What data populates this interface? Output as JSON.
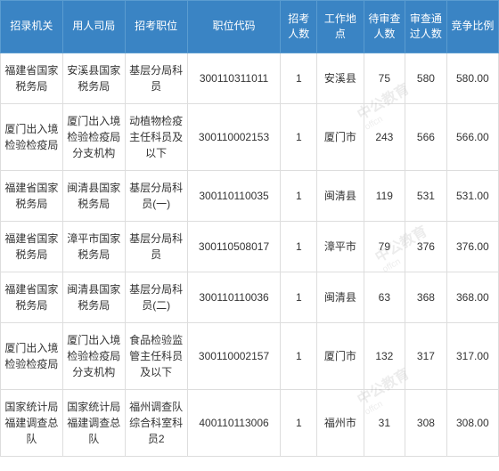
{
  "table": {
    "header_bg": "#3a84c4",
    "header_color": "#ffffff",
    "border_color": "#dddddd",
    "columns": [
      {
        "label": "招录机关",
        "width": "12%"
      },
      {
        "label": "用人司局",
        "width": "12%"
      },
      {
        "label": "招考职位",
        "width": "12%"
      },
      {
        "label": "职位代码",
        "width": "18%"
      },
      {
        "label": "招考人数",
        "width": "7%"
      },
      {
        "label": "工作地点",
        "width": "9%"
      },
      {
        "label": "待审查人数",
        "width": "8%"
      },
      {
        "label": "审查通过人数",
        "width": "8%"
      },
      {
        "label": "竞争比例",
        "width": "10%"
      }
    ],
    "rows": [
      {
        "c0": "福建省国家税务局",
        "c1": "安溪县国家税务局",
        "c2": "基层分局科员",
        "c3": "300110311011",
        "c4": "1",
        "c5": "安溪县",
        "c6": "75",
        "c7": "580",
        "c8": "580.00"
      },
      {
        "c0": "厦门出入境检验检疫局",
        "c1": "厦门出入境检验检疫局分支机构",
        "c2": "动植物检疫主任科员及以下",
        "c3": "300110002153",
        "c4": "1",
        "c5": "厦门市",
        "c6": "243",
        "c7": "566",
        "c8": "566.00"
      },
      {
        "c0": "福建省国家税务局",
        "c1": "闽清县国家税务局",
        "c2": "基层分局科员(一)",
        "c3": "300110110035",
        "c4": "1",
        "c5": "闽清县",
        "c6": "119",
        "c7": "531",
        "c8": "531.00"
      },
      {
        "c0": "福建省国家税务局",
        "c1": "漳平市国家税务局",
        "c2": "基层分局科员",
        "c3": "300110508017",
        "c4": "1",
        "c5": "漳平市",
        "c6": "79",
        "c7": "376",
        "c8": "376.00"
      },
      {
        "c0": "福建省国家税务局",
        "c1": "闽清县国家税务局",
        "c2": "基层分局科员(二)",
        "c3": "300110110036",
        "c4": "1",
        "c5": "闽清县",
        "c6": "63",
        "c7": "368",
        "c8": "368.00"
      },
      {
        "c0": "厦门出入境检验检疫局",
        "c1": "厦门出入境检验检疫局分支机构",
        "c2": "食品检验监管主任科员及以下",
        "c3": "300110002157",
        "c4": "1",
        "c5": "厦门市",
        "c6": "132",
        "c7": "317",
        "c8": "317.00"
      },
      {
        "c0": "国家统计局福建调查总队",
        "c1": "国家统计局福建调查总队",
        "c2": "福州调查队综合科室科员2",
        "c3": "400110113006",
        "c4": "1",
        "c5": "福州市",
        "c6": "31",
        "c7": "308",
        "c8": "308.00"
      }
    ]
  },
  "watermark": {
    "text": "中公教育",
    "sub": "offcn"
  }
}
